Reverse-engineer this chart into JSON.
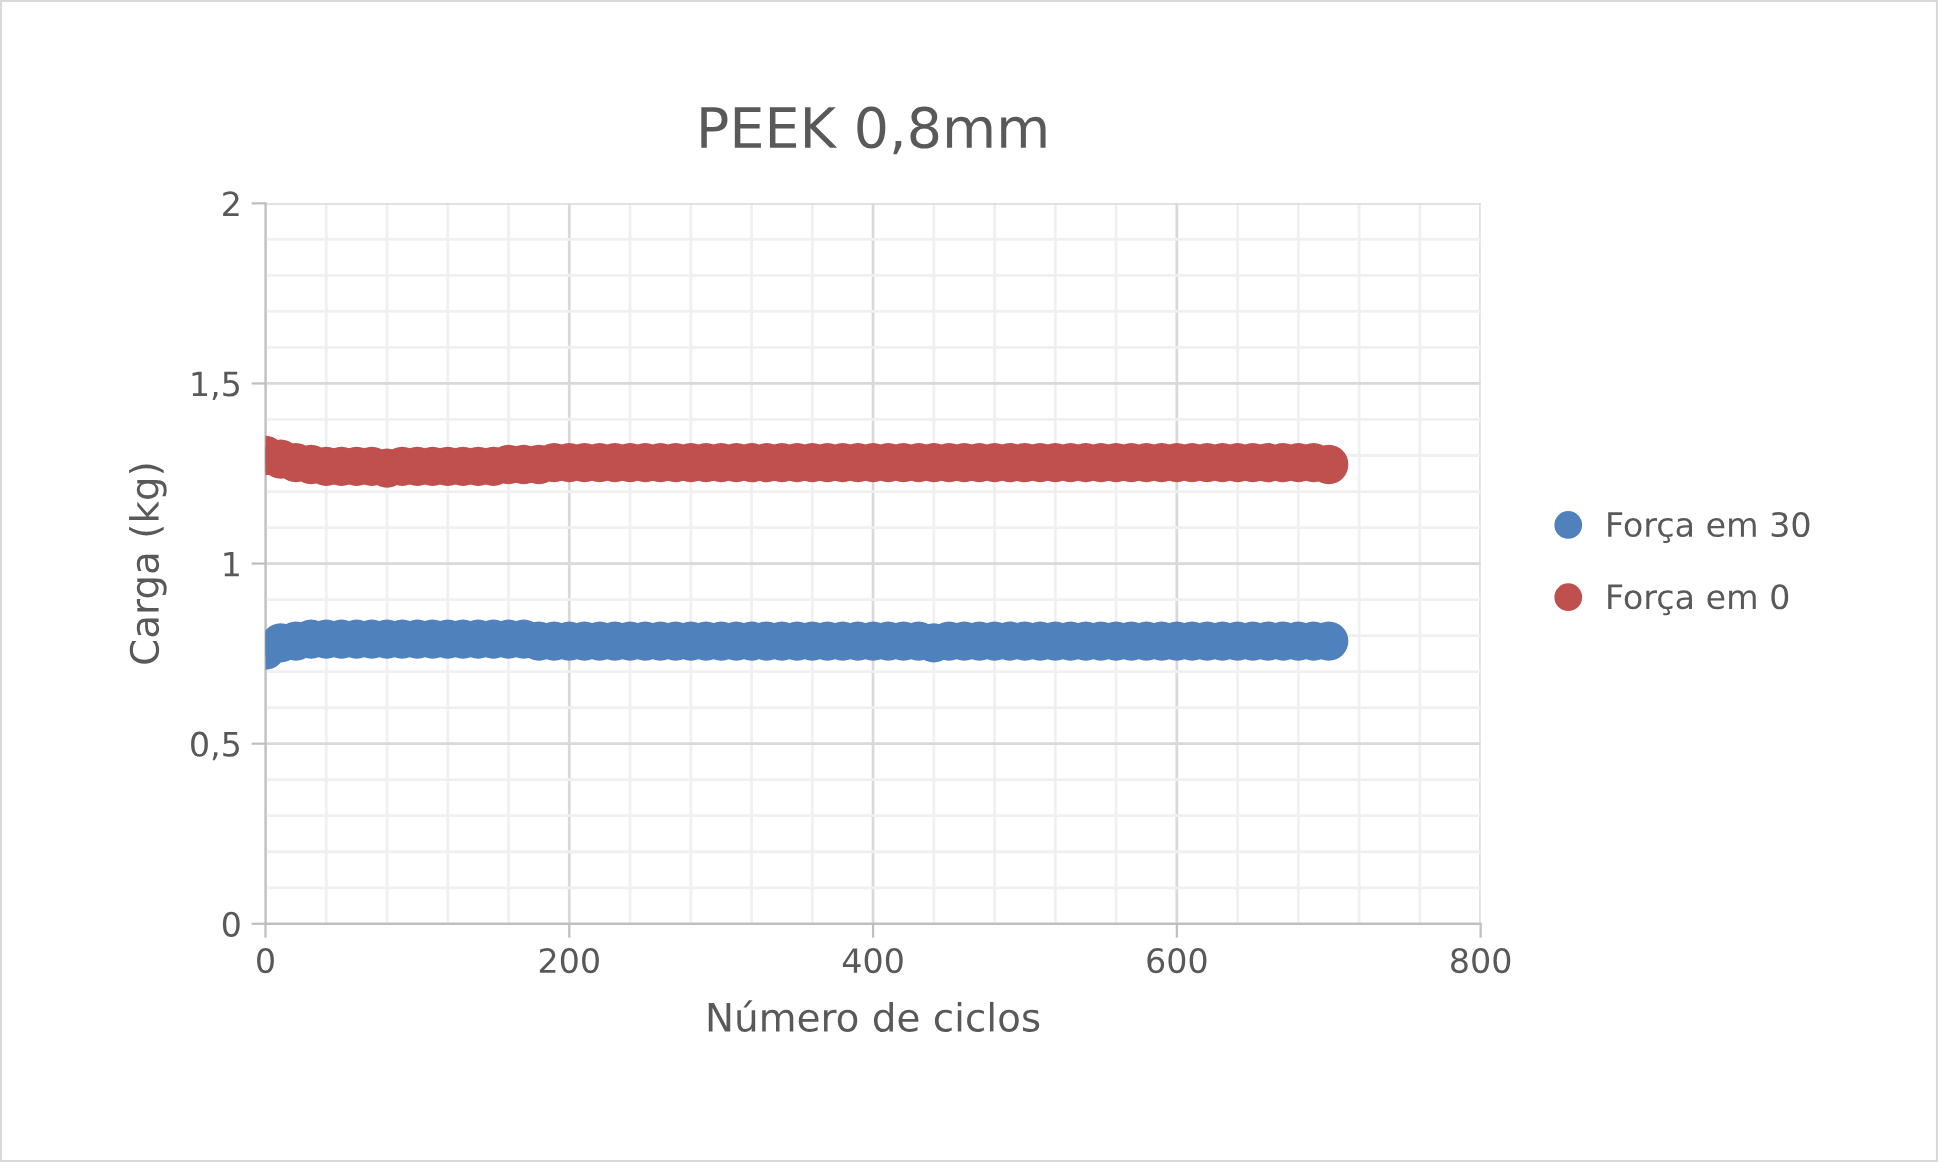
{
  "chart_data": {
    "type": "scatter",
    "title": "PEEK 0,8mm",
    "xlabel": "Número de ciclos",
    "ylabel": "Carga (kg)",
    "xlim": [
      0,
      800
    ],
    "xticks": [
      0,
      200,
      400,
      600,
      800
    ],
    "ylim": [
      0,
      2
    ],
    "yticks": [
      0,
      {
        "value": 0.5,
        "label": "0,5"
      },
      1,
      {
        "value": 1.5,
        "label": "1,5"
      },
      2
    ],
    "grid": true,
    "legend": "right",
    "marker": "circle",
    "x": [
      0,
      10,
      20,
      30,
      40,
      50,
      60,
      70,
      80,
      90,
      100,
      110,
      120,
      130,
      140,
      150,
      160,
      170,
      180,
      190,
      200,
      210,
      220,
      230,
      240,
      250,
      260,
      270,
      280,
      290,
      300,
      310,
      320,
      330,
      340,
      350,
      360,
      370,
      380,
      390,
      400,
      410,
      420,
      430,
      440,
      450,
      460,
      470,
      480,
      490,
      500,
      510,
      520,
      530,
      540,
      550,
      560,
      570,
      580,
      590,
      600,
      610,
      620,
      630,
      640,
      650,
      660,
      670,
      680,
      690,
      700
    ],
    "series": [
      {
        "name": "Força em 30",
        "color": "#4f81bd",
        "values": [
          0.76,
          0.78,
          0.785,
          0.79,
          0.79,
          0.79,
          0.79,
          0.79,
          0.79,
          0.79,
          0.79,
          0.79,
          0.79,
          0.79,
          0.79,
          0.79,
          0.79,
          0.79,
          0.785,
          0.785,
          0.785,
          0.785,
          0.785,
          0.785,
          0.785,
          0.785,
          0.785,
          0.785,
          0.785,
          0.785,
          0.785,
          0.785,
          0.785,
          0.785,
          0.785,
          0.785,
          0.785,
          0.785,
          0.785,
          0.785,
          0.785,
          0.785,
          0.785,
          0.785,
          0.78,
          0.785,
          0.785,
          0.785,
          0.785,
          0.785,
          0.785,
          0.785,
          0.785,
          0.785,
          0.785,
          0.785,
          0.785,
          0.785,
          0.785,
          0.785,
          0.785,
          0.785,
          0.785,
          0.785,
          0.785,
          0.785,
          0.785,
          0.785,
          0.785,
          0.785,
          0.785
        ]
      },
      {
        "name": "Força em 0",
        "color": "#c0504d",
        "values": [
          1.3,
          1.29,
          1.28,
          1.275,
          1.27,
          1.27,
          1.27,
          1.27,
          1.265,
          1.27,
          1.27,
          1.27,
          1.27,
          1.27,
          1.27,
          1.27,
          1.275,
          1.275,
          1.275,
          1.28,
          1.28,
          1.28,
          1.28,
          1.28,
          1.28,
          1.28,
          1.28,
          1.28,
          1.28,
          1.28,
          1.28,
          1.28,
          1.28,
          1.28,
          1.28,
          1.28,
          1.28,
          1.28,
          1.28,
          1.28,
          1.28,
          1.28,
          1.28,
          1.28,
          1.28,
          1.28,
          1.28,
          1.28,
          1.28,
          1.28,
          1.28,
          1.28,
          1.28,
          1.28,
          1.28,
          1.28,
          1.28,
          1.28,
          1.28,
          1.28,
          1.28,
          1.28,
          1.28,
          1.28,
          1.28,
          1.28,
          1.28,
          1.28,
          1.28,
          1.28,
          1.275
        ]
      }
    ]
  }
}
